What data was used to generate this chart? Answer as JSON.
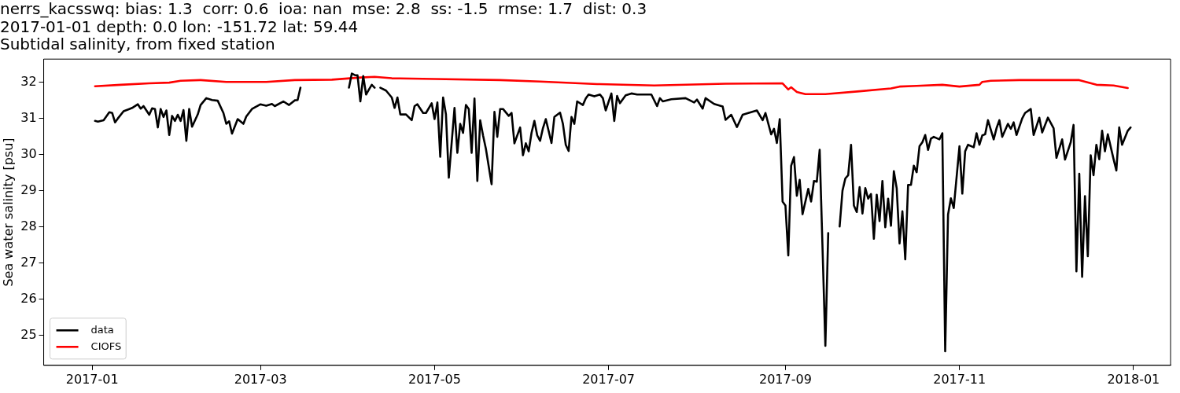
{
  "chart_data": {
    "type": "line",
    "title": "nerrs_kacsswq: bias: 1.3  corr: 0.6  ioa: nan  mse: 2.8  ss: -1.5  rmse: 1.7  dist: 0.3\n2017-01-01 depth: 0.0 lon: -151.72 lat: 59.44\nSubtidal salinity, from fixed station",
    "ylabel": "Sea water salinity [psu]",
    "xlim": [
      "2016-12-15",
      "2018-01-14"
    ],
    "xticks": [
      "2017-01",
      "2017-03",
      "2017-05",
      "2017-07",
      "2017-09",
      "2017-11",
      "2018-01"
    ],
    "ylim": [
      24.17,
      32.64
    ],
    "yticks": [
      25,
      26,
      27,
      28,
      29,
      30,
      31,
      32
    ],
    "grid": false,
    "legend": "bottom left",
    "line_style": "solid",
    "series": [
      {
        "name": "data",
        "color": "#000000",
        "x": [
          "2017-01-02",
          "2017-01-03",
          "2017-01-05",
          "2017-01-07",
          "2017-01-08",
          "2017-01-09",
          "2017-01-10",
          "2017-01-12",
          "2017-01-14",
          "2017-01-15",
          "2017-01-17",
          "2017-01-18",
          "2017-01-19",
          "2017-01-21",
          "2017-01-22",
          "2017-01-23",
          "2017-01-24",
          "2017-01-25",
          "2017-01-26",
          "2017-01-27",
          "2017-01-28",
          "2017-01-29",
          "2017-01-30",
          "2017-01-31",
          "2017-02-01",
          "2017-02-02",
          "2017-02-03",
          "2017-02-04",
          "2017-02-05",
          "2017-02-07",
          "2017-02-08",
          "2017-02-10",
          "2017-02-12",
          "2017-02-14",
          "2017-02-16",
          "2017-02-17",
          "2017-02-18",
          "2017-02-19",
          "2017-02-21",
          "2017-02-23",
          "2017-02-24",
          "2017-02-26",
          "2017-03-01",
          "2017-03-03",
          "2017-03-05",
          "2017-03-06",
          "2017-03-09",
          "2017-03-11",
          "2017-03-13",
          "2017-03-14",
          "2017-03-15",
          "2017-03-22",
          "2017-04-01",
          "2017-04-02",
          "2017-04-03",
          "2017-04-04",
          "2017-04-05",
          "2017-04-06",
          "2017-04-07",
          "2017-04-08",
          "2017-04-09",
          "2017-04-10",
          "2017-04-11",
          "2017-04-12",
          "2017-04-14",
          "2017-04-16",
          "2017-04-17",
          "2017-04-18",
          "2017-04-19",
          "2017-04-21",
          "2017-04-23",
          "2017-04-24",
          "2017-04-25",
          "2017-04-27",
          "2017-04-28",
          "2017-04-30",
          "2017-05-01",
          "2017-05-02",
          "2017-05-03",
          "2017-05-04",
          "2017-05-05",
          "2017-05-06",
          "2017-05-08",
          "2017-05-09",
          "2017-05-10",
          "2017-05-11",
          "2017-05-12",
          "2017-05-13",
          "2017-05-14",
          "2017-05-15",
          "2017-05-16",
          "2017-05-17",
          "2017-05-18",
          "2017-05-19",
          "2017-05-21",
          "2017-05-22",
          "2017-05-23",
          "2017-05-24",
          "2017-05-25",
          "2017-05-27",
          "2017-05-28",
          "2017-05-29",
          "2017-05-31",
          "2017-06-01",
          "2017-06-02",
          "2017-06-03",
          "2017-06-04",
          "2017-06-05",
          "2017-06-06",
          "2017-06-07",
          "2017-06-08",
          "2017-06-09",
          "2017-06-11",
          "2017-06-12",
          "2017-06-14",
          "2017-06-15",
          "2017-06-16",
          "2017-06-17",
          "2017-06-18",
          "2017-06-19",
          "2017-06-20",
          "2017-06-22",
          "2017-06-23",
          "2017-06-24",
          "2017-06-26",
          "2017-06-28",
          "2017-06-29",
          "2017-06-30",
          "2017-07-02",
          "2017-07-03",
          "2017-07-04",
          "2017-07-05",
          "2017-07-07",
          "2017-07-09",
          "2017-07-11",
          "2017-07-14",
          "2017-07-16",
          "2017-07-18",
          "2017-07-19",
          "2017-07-20",
          "2017-07-23",
          "2017-07-28",
          "2017-07-31",
          "2017-08-01",
          "2017-08-03",
          "2017-08-04",
          "2017-08-07",
          "2017-08-10",
          "2017-08-11",
          "2017-08-13",
          "2017-08-15",
          "2017-08-17",
          "2017-08-19",
          "2017-08-22",
          "2017-08-24",
          "2017-08-25",
          "2017-08-27",
          "2017-08-28",
          "2017-08-29",
          "2017-08-30",
          "2017-08-31",
          "2017-09-01",
          "2017-09-02",
          "2017-09-03",
          "2017-09-04",
          "2017-09-05",
          "2017-09-06",
          "2017-09-07",
          "2017-09-09",
          "2017-09-10",
          "2017-09-11",
          "2017-09-12",
          "2017-09-13",
          "2017-09-15",
          "2017-09-16",
          "2017-09-18",
          "2017-09-20",
          "2017-09-21",
          "2017-09-22",
          "2017-09-23",
          "2017-09-24",
          "2017-09-25",
          "2017-09-26",
          "2017-09-27",
          "2017-09-28",
          "2017-09-29",
          "2017-09-30",
          "2017-10-01",
          "2017-10-02",
          "2017-10-03",
          "2017-10-04",
          "2017-10-05",
          "2017-10-06",
          "2017-10-07",
          "2017-10-08",
          "2017-10-09",
          "2017-10-10",
          "2017-10-11",
          "2017-10-12",
          "2017-10-13",
          "2017-10-14",
          "2017-10-15",
          "2017-10-16",
          "2017-10-17",
          "2017-10-18",
          "2017-10-19",
          "2017-10-20",
          "2017-10-21",
          "2017-10-22",
          "2017-10-23",
          "2017-10-25",
          "2017-10-26",
          "2017-10-27",
          "2017-10-28",
          "2017-10-29",
          "2017-10-30",
          "2017-11-01",
          "2017-11-02",
          "2017-11-03",
          "2017-11-04",
          "2017-11-06",
          "2017-11-07",
          "2017-11-08",
          "2017-11-09",
          "2017-11-10",
          "2017-11-11",
          "2017-11-13",
          "2017-11-14",
          "2017-11-15",
          "2017-11-16",
          "2017-11-18",
          "2017-11-19",
          "2017-11-20",
          "2017-11-21",
          "2017-11-23",
          "2017-11-24",
          "2017-11-26",
          "2017-11-27",
          "2017-11-29",
          "2017-11-30",
          "2017-12-02",
          "2017-12-04",
          "2017-12-05",
          "2017-12-07",
          "2017-12-08",
          "2017-12-10",
          "2017-12-11",
          "2017-12-12",
          "2017-12-13",
          "2017-12-14",
          "2017-12-15",
          "2017-12-16",
          "2017-12-17",
          "2017-12-18",
          "2017-12-19",
          "2017-12-20",
          "2017-12-21",
          "2017-12-22",
          "2017-12-23",
          "2017-12-25",
          "2017-12-26",
          "2017-12-27",
          "2017-12-28",
          "2017-12-30",
          "2017-12-31"
        ],
        "values": [
          30.93,
          30.91,
          30.95,
          31.17,
          31.15,
          30.89,
          31.0,
          31.2,
          31.26,
          31.29,
          31.39,
          31.27,
          31.34,
          31.1,
          31.28,
          31.26,
          30.75,
          31.26,
          31.04,
          31.22,
          30.54,
          31.07,
          30.93,
          31.1,
          30.93,
          31.23,
          30.38,
          31.26,
          30.77,
          31.11,
          31.37,
          31.56,
          31.51,
          31.49,
          31.15,
          30.85,
          30.92,
          30.58,
          30.98,
          30.85,
          31.05,
          31.26,
          31.39,
          31.35,
          31.4,
          31.34,
          31.47,
          31.37,
          31.5,
          31.51,
          31.85,
          null,
          31.85,
          32.24,
          32.2,
          32.19,
          31.47,
          32.17,
          31.66,
          31.8,
          31.93,
          31.85,
          null,
          31.85,
          31.77,
          31.58,
          31.29,
          31.58,
          31.11,
          31.11,
          30.95,
          31.34,
          31.39,
          31.15,
          31.15,
          31.42,
          30.98,
          31.44,
          29.94,
          31.58,
          31.11,
          29.36,
          31.29,
          30.05,
          30.85,
          30.6,
          31.37,
          31.26,
          30.05,
          31.55,
          29.27,
          30.95,
          30.53,
          30.16,
          29.18,
          31.18,
          30.49,
          31.26,
          31.26,
          31.07,
          31.15,
          30.31,
          30.75,
          29.98,
          30.31,
          30.09,
          30.6,
          30.93,
          30.53,
          30.38,
          30.73,
          30.98,
          30.32,
          31.04,
          31.16,
          30.85,
          30.27,
          30.1,
          31.04,
          30.85,
          31.47,
          31.37,
          31.55,
          31.66,
          31.61,
          31.66,
          31.56,
          31.22,
          31.69,
          30.93,
          31.62,
          31.42,
          31.64,
          31.69,
          31.66,
          31.66,
          31.66,
          31.34,
          31.56,
          31.47,
          31.53,
          31.56,
          31.44,
          31.52,
          31.27,
          31.56,
          31.4,
          31.33,
          30.96,
          31.1,
          30.76,
          31.1,
          31.15,
          31.22,
          30.95,
          31.15,
          30.56,
          30.71,
          30.32,
          30.98,
          28.7,
          28.59,
          27.21,
          29.69,
          29.93,
          28.86,
          29.3,
          28.35,
          29.05,
          28.7,
          29.27,
          29.25,
          30.13,
          24.71,
          27.83,
          null,
          28.01,
          29.0,
          29.34,
          29.43,
          30.27,
          28.59,
          28.41,
          29.1,
          28.37,
          29.07,
          28.78,
          28.91,
          27.67,
          28.89,
          28.16,
          29.27,
          27.99,
          28.78,
          28.03,
          29.54,
          29.07,
          27.54,
          28.43,
          27.1,
          29.16,
          29.16,
          29.69,
          29.51,
          30.23,
          30.34,
          30.54,
          30.13,
          30.44,
          30.49,
          30.42,
          30.59,
          24.56,
          28.34,
          28.79,
          28.52,
          30.23,
          28.92,
          30.09,
          30.27,
          30.2,
          30.59,
          30.27,
          30.53,
          30.56,
          30.95,
          30.42,
          30.73,
          30.95,
          30.49,
          30.85,
          30.71,
          30.89,
          30.54,
          31.0,
          31.15,
          31.26,
          30.54,
          31.02,
          30.61,
          31.02,
          30.73,
          29.91,
          30.42,
          29.86,
          30.34,
          30.82,
          26.77,
          29.47,
          26.62,
          28.85,
          27.19,
          29.98,
          29.43,
          30.27,
          29.87,
          30.66,
          30.09,
          30.56,
          29.88,
          29.56,
          30.75,
          30.27,
          30.66,
          30.75
        ]
      },
      {
        "name": "CIOFS",
        "color": "#ff0000",
        "x": [
          "2017-01-02",
          "2017-01-11",
          "2017-01-21",
          "2017-01-28",
          "2017-02-01",
          "2017-02-08",
          "2017-02-17",
          "2017-03-03",
          "2017-03-13",
          "2017-03-26",
          "2017-04-05",
          "2017-04-10",
          "2017-04-16",
          "2017-05-01",
          "2017-05-24",
          "2017-06-07",
          "2017-06-27",
          "2017-07-17",
          "2017-08-11",
          "2017-08-31",
          "2017-09-02",
          "2017-09-03",
          "2017-09-05",
          "2017-09-08",
          "2017-09-15",
          "2017-09-27",
          "2017-10-08",
          "2017-10-11",
          "2017-10-17",
          "2017-10-26",
          "2017-11-01",
          "2017-11-08",
          "2017-11-09",
          "2017-11-12",
          "2017-11-22",
          "2017-12-13",
          "2017-12-19",
          "2017-12-25",
          "2017-12-30"
        ],
        "values": [
          31.89,
          31.93,
          31.97,
          31.99,
          32.04,
          32.06,
          32.01,
          32.01,
          32.06,
          32.07,
          32.13,
          32.15,
          32.11,
          32.09,
          32.06,
          32.02,
          31.95,
          31.91,
          31.96,
          31.97,
          31.8,
          31.86,
          31.73,
          31.67,
          31.67,
          31.75,
          31.83,
          31.88,
          31.9,
          31.93,
          31.88,
          31.93,
          32.01,
          32.04,
          32.06,
          32.06,
          31.93,
          31.91,
          31.84
        ]
      }
    ]
  }
}
